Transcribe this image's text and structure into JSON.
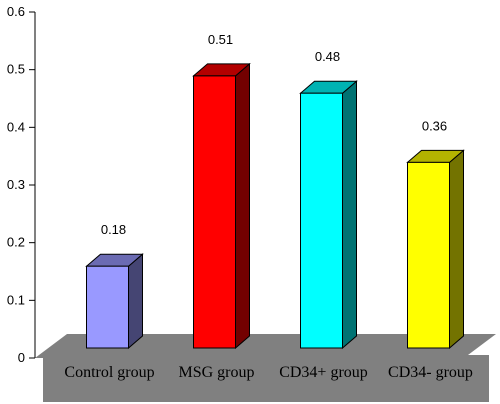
{
  "chart_data": {
    "type": "bar",
    "style": "3d",
    "categories": [
      "Control group",
      "MSG group",
      "CD34+ group",
      "CD34- group"
    ],
    "values": [
      0.18,
      0.51,
      0.48,
      0.36
    ],
    "data_labels": [
      "0.18",
      "0.51",
      "0.48",
      "0.36"
    ],
    "colors": [
      "#9999ff",
      "#ff0000",
      "#00ffff",
      "#ffff00"
    ],
    "floor_color": "#808080",
    "ylim": [
      0,
      0.6
    ],
    "yticks": [
      "0",
      "0.1",
      "0.2",
      "0.3",
      "0.4",
      "0.5",
      "0.6"
    ],
    "grid": false,
    "legend": "none",
    "title": "",
    "xlabel": "",
    "ylabel": ""
  }
}
